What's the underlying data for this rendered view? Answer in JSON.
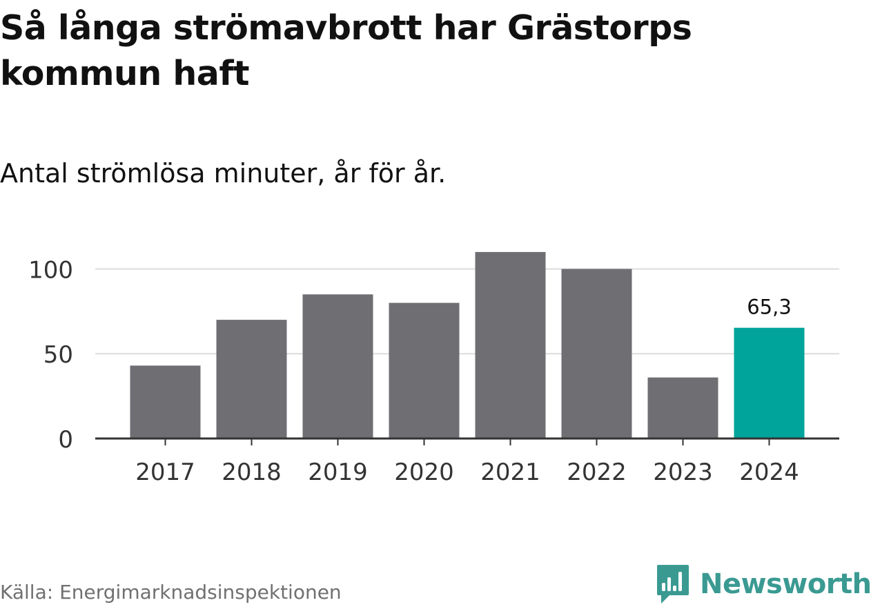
{
  "title": "Så långa strömavbrott har Grästorps kommun haft",
  "subtitle": "Antal strömlösa minuter, år för år.",
  "source": "Källa: Energimarknadsinspektionen",
  "brand": {
    "name": "Newsworthy",
    "logo_icon": "newsworthy-logo-icon",
    "color": "#3a9a92"
  },
  "chart_data": {
    "type": "bar",
    "categories": [
      "2017",
      "2018",
      "2019",
      "2020",
      "2021",
      "2022",
      "2023",
      "2024"
    ],
    "values": [
      43,
      70,
      85,
      80,
      110,
      100,
      36,
      65.3
    ],
    "yticks": [
      0,
      50,
      100
    ],
    "ylim": [
      0,
      112
    ],
    "grid": true,
    "bar_color": "#6f6e73",
    "highlight_color": "#00a49a",
    "highlight_index": 7,
    "data_labels": [
      {
        "index": 7,
        "text": "65,3"
      }
    ],
    "xlabel": "",
    "ylabel": ""
  }
}
